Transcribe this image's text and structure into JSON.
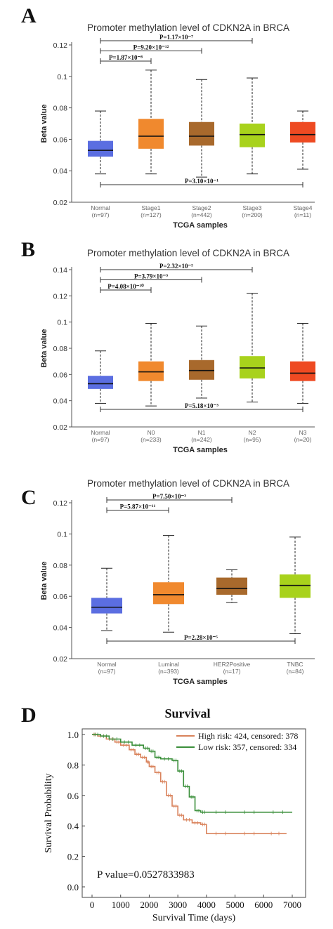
{
  "panels": [
    {
      "letter": "A",
      "title": "Promoter methylation level of CDKN2A in BRCA",
      "ylabel": "Beta value",
      "xlabel": "TCGA samples",
      "yticks": [
        "0.12",
        "0.1",
        "0.08",
        "0.06",
        "0.04",
        "0.02"
      ],
      "pvalues": [
        {
          "text": "P=1.17×10⁻⁷",
          "from": "Normal",
          "to": "Stage3"
        },
        {
          "text": "P=9.20×10⁻¹²",
          "from": "Normal",
          "to": "Stage2"
        },
        {
          "text": "P=1.87×10⁻⁸",
          "from": "Normal",
          "to": "Stage1"
        },
        {
          "text": "P=3.10×10⁻¹",
          "from": "Normal",
          "to": "Stage4"
        }
      ],
      "groups": [
        {
          "name": "Normal",
          "n": "(n=97)",
          "color": "#5b6ee1"
        },
        {
          "name": "Stage1",
          "n": "(n=127)",
          "color": "#f0892e"
        },
        {
          "name": "Stage2",
          "n": "(n=442)",
          "color": "#a8692c"
        },
        {
          "name": "Stage3",
          "n": "(n=200)",
          "color": "#a8d21c"
        },
        {
          "name": "Stage4",
          "n": "(n=11)",
          "color": "#ee4a22"
        }
      ]
    },
    {
      "letter": "B",
      "title": "Promoter methylation level of CDKN2A in BRCA",
      "ylabel": "Beta value",
      "xlabel": "TCGA samples",
      "yticks": [
        "0.14",
        "0.12",
        "0.1",
        "0.08",
        "0.06",
        "0.04",
        "0.02"
      ],
      "pvalues": [
        {
          "text": "P=2.32×10⁻⁵",
          "from": "Normal",
          "to": "N2"
        },
        {
          "text": "P=3.79×10⁻⁹",
          "from": "Normal",
          "to": "N1"
        },
        {
          "text": "P=4.08×10⁻¹⁰",
          "from": "Normal",
          "to": "N0"
        },
        {
          "text": "P=5.18×10⁻³",
          "from": "Normal",
          "to": "N3"
        }
      ],
      "groups": [
        {
          "name": "Normal",
          "n": "(n=97)",
          "color": "#5b6ee1"
        },
        {
          "name": "N0",
          "n": "(n=233)",
          "color": "#f0892e"
        },
        {
          "name": "N1",
          "n": "(n=242)",
          "color": "#a8692c"
        },
        {
          "name": "N2",
          "n": "(n=95)",
          "color": "#a8d21c"
        },
        {
          "name": "N3",
          "n": "(n=20)",
          "color": "#ee4a22"
        }
      ]
    },
    {
      "letter": "C",
      "title": "Promoter methylation level of CDKN2A in BRCA",
      "ylabel": "Beta value",
      "xlabel": "TCGA samples",
      "yticks": [
        "0.12",
        "0.1",
        "0.08",
        "0.06",
        "0.04",
        "0.02"
      ],
      "pvalues": [
        {
          "text": "P=7.50×10⁻³",
          "from": "Normal",
          "to": "HER2Positive"
        },
        {
          "text": "P=5.87×10⁻¹¹",
          "from": "Normal",
          "to": "Luminal"
        },
        {
          "text": "P=2.28×10⁻⁵",
          "from": "Normal",
          "to": "TNBC"
        }
      ],
      "groups": [
        {
          "name": "Normal",
          "n": "(n=97)",
          "color": "#5b6ee1"
        },
        {
          "name": "Luminal",
          "n": "(n=393)",
          "color": "#f0892e"
        },
        {
          "name": "HER2Positive",
          "n": "(n=17)",
          "color": "#a8692c"
        },
        {
          "name": "TNBC",
          "n": "(n=84)",
          "color": "#a8d21c"
        }
      ]
    }
  ],
  "survival": {
    "letter": "D",
    "title": "Survival",
    "ylabel": "Survival Probability",
    "xlabel": "Survival Time (days)",
    "yticks": [
      "1.0",
      "0.8",
      "0.6",
      "0.4",
      "0.2",
      "0.0"
    ],
    "xticks": [
      "0",
      "1000",
      "2000",
      "3000",
      "4000",
      "5000",
      "6000",
      "7000"
    ],
    "pvalue": "P value=0.0527833983",
    "legend": [
      {
        "label": "High risk: 424, censored: 378",
        "color": "#d9825b"
      },
      {
        "label": "Low risk: 357, censored: 334",
        "color": "#3a8f3a"
      }
    ]
  },
  "chart_data": [
    {
      "type": "box",
      "title": "Promoter methylation level of CDKN2A in BRCA",
      "xlabel": "TCGA samples",
      "ylabel": "Beta value",
      "ylim": [
        0.02,
        0.12
      ],
      "categories": [
        "Normal",
        "Stage1",
        "Stage2",
        "Stage3",
        "Stage4"
      ],
      "series": [
        {
          "min": 0.038,
          "q1": 0.049,
          "median": 0.053,
          "q3": 0.059,
          "max": 0.078
        },
        {
          "min": 0.038,
          "q1": 0.054,
          "median": 0.062,
          "q3": 0.073,
          "max": 0.104
        },
        {
          "min": 0.036,
          "q1": 0.056,
          "median": 0.062,
          "q3": 0.071,
          "max": 0.098
        },
        {
          "min": 0.038,
          "q1": 0.055,
          "median": 0.063,
          "q3": 0.07,
          "max": 0.099
        },
        {
          "min": 0.041,
          "q1": 0.058,
          "median": 0.063,
          "q3": 0.071,
          "max": 0.078
        }
      ]
    },
    {
      "type": "box",
      "title": "Promoter methylation level of CDKN2A in BRCA",
      "xlabel": "TCGA samples",
      "ylabel": "Beta value",
      "ylim": [
        0.02,
        0.14
      ],
      "categories": [
        "Normal",
        "N0",
        "N1",
        "N2",
        "N3"
      ],
      "series": [
        {
          "min": 0.038,
          "q1": 0.049,
          "median": 0.053,
          "q3": 0.059,
          "max": 0.078
        },
        {
          "min": 0.036,
          "q1": 0.055,
          "median": 0.062,
          "q3": 0.07,
          "max": 0.099
        },
        {
          "min": 0.042,
          "q1": 0.056,
          "median": 0.063,
          "q3": 0.071,
          "max": 0.097
        },
        {
          "min": 0.039,
          "q1": 0.057,
          "median": 0.065,
          "q3": 0.074,
          "max": 0.122
        },
        {
          "min": 0.038,
          "q1": 0.055,
          "median": 0.061,
          "q3": 0.07,
          "max": 0.099
        }
      ]
    },
    {
      "type": "box",
      "title": "Promoter methylation level of CDKN2A in BRCA",
      "xlabel": "TCGA samples",
      "ylabel": "Beta value",
      "ylim": [
        0.02,
        0.12
      ],
      "categories": [
        "Normal",
        "Luminal",
        "HER2Positive",
        "TNBC"
      ],
      "series": [
        {
          "min": 0.038,
          "q1": 0.049,
          "median": 0.053,
          "q3": 0.059,
          "max": 0.078
        },
        {
          "min": 0.037,
          "q1": 0.055,
          "median": 0.061,
          "q3": 0.069,
          "max": 0.099
        },
        {
          "min": 0.056,
          "q1": 0.061,
          "median": 0.065,
          "q3": 0.072,
          "max": 0.077
        },
        {
          "min": 0.036,
          "q1": 0.059,
          "median": 0.067,
          "q3": 0.074,
          "max": 0.098
        }
      ]
    },
    {
      "type": "line",
      "title": "Survival",
      "xlabel": "Survival Time (days)",
      "ylabel": "Survival Probability",
      "xlim": [
        0,
        7000
      ],
      "ylim": [
        0,
        1.0
      ],
      "series": [
        {
          "name": "High risk: 424, censored: 378",
          "x": [
            0,
            200,
            500,
            800,
            1000,
            1300,
            1500,
            1700,
            1900,
            2000,
            2200,
            2400,
            2600,
            2800,
            3000,
            3200,
            3500,
            3800,
            4000,
            5000,
            6000,
            6800
          ],
          "y": [
            1.0,
            0.99,
            0.97,
            0.95,
            0.93,
            0.9,
            0.87,
            0.85,
            0.82,
            0.79,
            0.75,
            0.69,
            0.6,
            0.53,
            0.47,
            0.44,
            0.42,
            0.41,
            0.35,
            0.35,
            0.35,
            0.35
          ]
        },
        {
          "name": "Low risk: 357, censored: 334",
          "x": [
            0,
            300,
            600,
            1000,
            1400,
            1800,
            2000,
            2200,
            2400,
            2800,
            3000,
            3200,
            3400,
            3600,
            3800,
            4000,
            5000,
            6000,
            7000
          ],
          "y": [
            1.0,
            0.99,
            0.97,
            0.95,
            0.93,
            0.91,
            0.89,
            0.85,
            0.84,
            0.83,
            0.76,
            0.66,
            0.59,
            0.5,
            0.49,
            0.49,
            0.49,
            0.49,
            0.49
          ]
        }
      ]
    }
  ]
}
